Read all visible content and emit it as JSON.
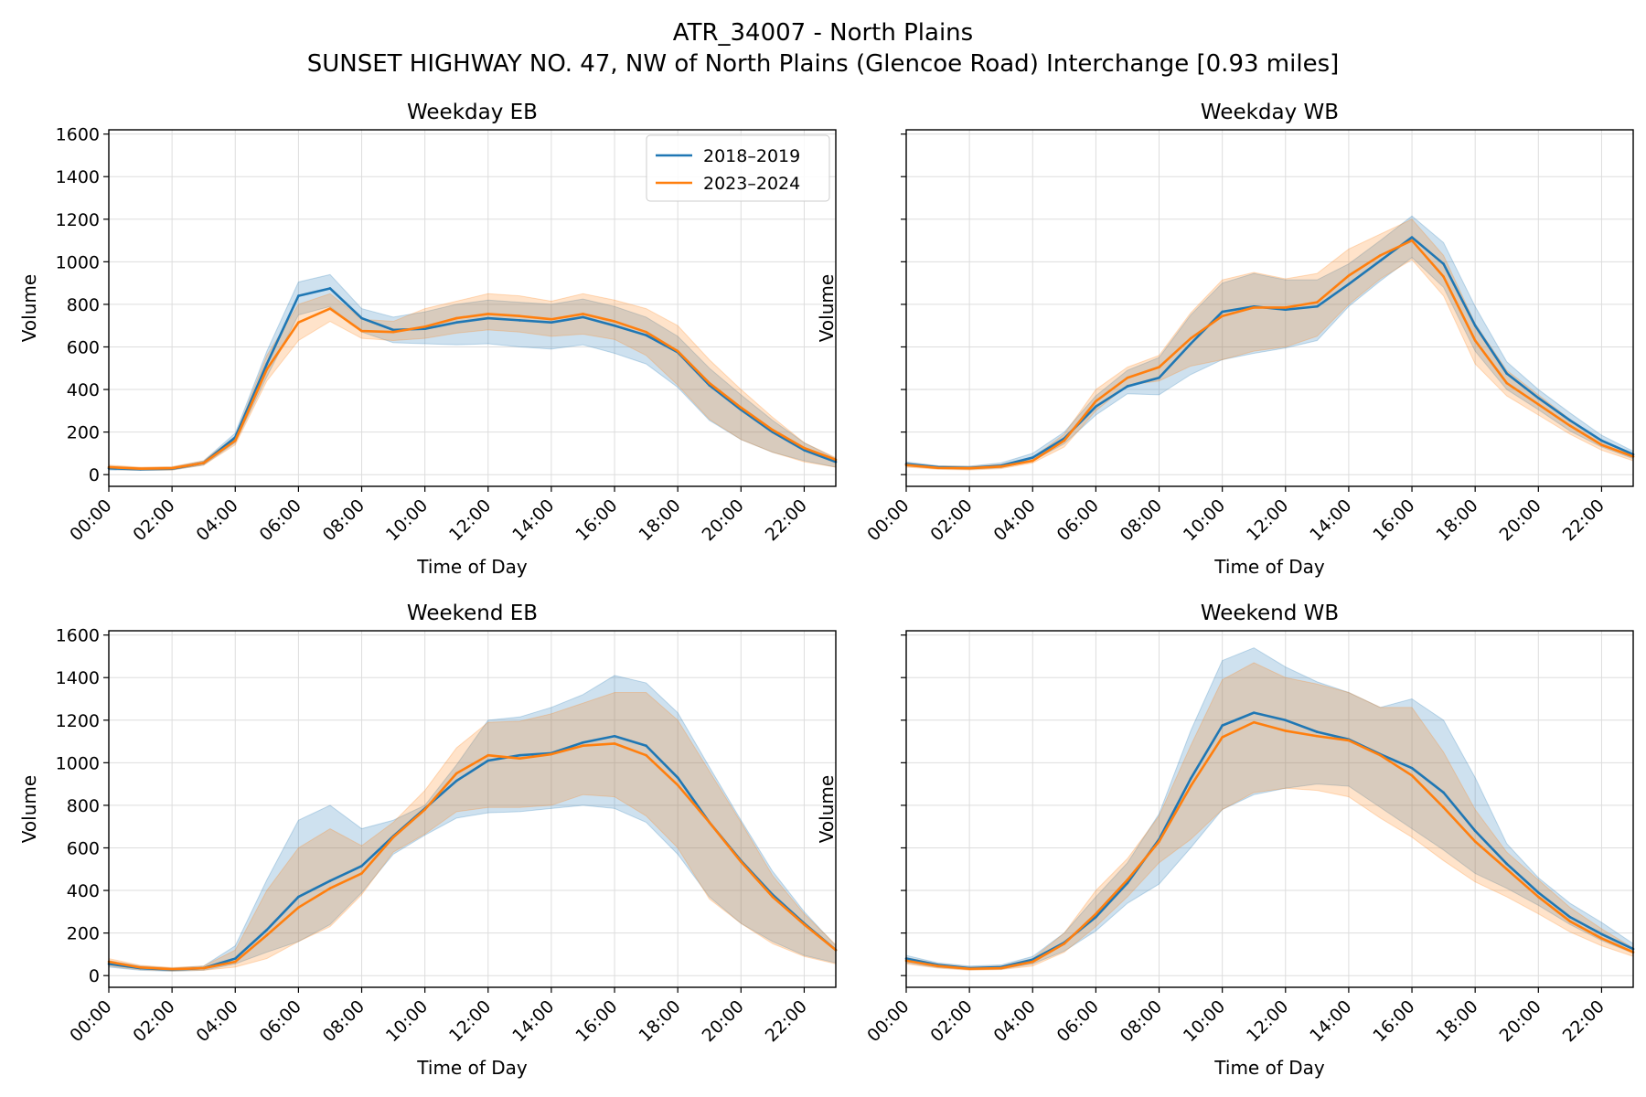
{
  "figure": {
    "title_line1": "ATR_34007 - North Plains",
    "title_line2": "SUNSET HIGHWAY NO. 47, NW of North Plains (Glencoe Road) Interchange [0.93 miles]"
  },
  "colors": {
    "series_2018_2019": "#1f77b4",
    "series_2023_2024": "#ff7f0e",
    "grid": "#dddddd"
  },
  "legend": {
    "placement": "upper-right of first panel",
    "items": [
      "2018–2019",
      "2023–2024"
    ]
  },
  "chart_data": [
    {
      "type": "line",
      "title": "Weekday EB",
      "xlabel": "Time of Day",
      "ylabel": "Volume",
      "x": [
        "00:00",
        "01:00",
        "02:00",
        "03:00",
        "04:00",
        "05:00",
        "06:00",
        "07:00",
        "08:00",
        "09:00",
        "10:00",
        "11:00",
        "12:00",
        "13:00",
        "14:00",
        "15:00",
        "16:00",
        "17:00",
        "18:00",
        "19:00",
        "20:00",
        "21:00",
        "22:00",
        "23:00"
      ],
      "xticks": [
        "00:00",
        "02:00",
        "04:00",
        "06:00",
        "08:00",
        "10:00",
        "12:00",
        "14:00",
        "16:00",
        "18:00",
        "20:00",
        "22:00"
      ],
      "yticks": [
        0,
        200,
        400,
        600,
        800,
        1000,
        1200,
        1400,
        1600
      ],
      "xlim": [
        0,
        23
      ],
      "ylim": [
        -55,
        1620
      ],
      "grid": true,
      "series": [
        {
          "name": "2018–2019",
          "values": [
            30,
            25,
            28,
            55,
            175,
            520,
            840,
            875,
            735,
            680,
            685,
            715,
            735,
            725,
            715,
            740,
            700,
            655,
            575,
            420,
            305,
            200,
            115,
            60
          ],
          "lower": [
            22,
            20,
            22,
            45,
            150,
            460,
            750,
            790,
            670,
            620,
            615,
            610,
            615,
            600,
            590,
            610,
            570,
            520,
            410,
            255,
            165,
            105,
            65,
            35
          ],
          "upper": [
            40,
            32,
            35,
            65,
            195,
            580,
            905,
            940,
            780,
            740,
            765,
            800,
            820,
            810,
            800,
            825,
            790,
            740,
            650,
            500,
            375,
            255,
            150,
            75
          ]
        },
        {
          "name": "2023–2024",
          "values": [
            35,
            28,
            30,
            55,
            160,
            495,
            715,
            780,
            675,
            670,
            695,
            735,
            755,
            745,
            730,
            755,
            720,
            670,
            580,
            430,
            315,
            210,
            125,
            70
          ],
          "lower": [
            25,
            20,
            22,
            45,
            140,
            440,
            630,
            720,
            640,
            630,
            640,
            665,
            680,
            670,
            650,
            660,
            635,
            560,
            420,
            260,
            165,
            105,
            60,
            35
          ],
          "upper": [
            45,
            35,
            38,
            65,
            180,
            560,
            800,
            850,
            730,
            720,
            780,
            815,
            850,
            840,
            815,
            850,
            820,
            780,
            700,
            540,
            400,
            270,
            150,
            80
          ]
        }
      ]
    },
    {
      "type": "line",
      "title": "Weekday WB",
      "xlabel": "Time of Day",
      "ylabel": "Volume",
      "x": [
        "00:00",
        "01:00",
        "02:00",
        "03:00",
        "04:00",
        "05:00",
        "06:00",
        "07:00",
        "08:00",
        "09:00",
        "10:00",
        "11:00",
        "12:00",
        "13:00",
        "14:00",
        "15:00",
        "16:00",
        "17:00",
        "18:00",
        "19:00",
        "20:00",
        "21:00",
        "22:00",
        "23:00"
      ],
      "xticks": [
        "00:00",
        "02:00",
        "04:00",
        "06:00",
        "08:00",
        "10:00",
        "12:00",
        "14:00",
        "16:00",
        "18:00",
        "20:00",
        "22:00"
      ],
      "yticks": [
        0,
        200,
        400,
        600,
        800,
        1000,
        1200,
        1400,
        1600
      ],
      "xlim": [
        0,
        23
      ],
      "ylim": [
        -55,
        1620
      ],
      "grid": true,
      "series": [
        {
          "name": "2018–2019",
          "values": [
            50,
            35,
            32,
            42,
            80,
            170,
            320,
            415,
            455,
            615,
            765,
            790,
            775,
            790,
            895,
            1005,
            1115,
            990,
            700,
            475,
            360,
            255,
            160,
            95
          ],
          "lower": [
            40,
            28,
            25,
            32,
            65,
            145,
            280,
            380,
            375,
            470,
            540,
            570,
            595,
            630,
            790,
            910,
            1020,
            880,
            580,
            400,
            305,
            205,
            130,
            75
          ],
          "upper": [
            60,
            42,
            40,
            55,
            100,
            200,
            370,
            490,
            550,
            750,
            900,
            945,
            915,
            915,
            990,
            1100,
            1215,
            1090,
            790,
            530,
            400,
            290,
            185,
            110
          ]
        },
        {
          "name": "2023–2024",
          "values": [
            45,
            32,
            30,
            38,
            65,
            160,
            345,
            455,
            505,
            640,
            745,
            785,
            785,
            810,
            935,
            1030,
            1100,
            930,
            630,
            430,
            330,
            230,
            140,
            85
          ],
          "lower": [
            35,
            25,
            22,
            28,
            55,
            130,
            300,
            420,
            440,
            510,
            540,
            580,
            600,
            650,
            800,
            920,
            1010,
            840,
            520,
            370,
            280,
            190,
            115,
            65
          ],
          "upper": [
            55,
            40,
            38,
            48,
            80,
            190,
            400,
            505,
            560,
            760,
            915,
            950,
            920,
            945,
            1060,
            1130,
            1200,
            1030,
            710,
            490,
            375,
            260,
            160,
            95
          ]
        }
      ]
    },
    {
      "type": "line",
      "title": "Weekend EB",
      "xlabel": "Time of Day",
      "ylabel": "Volume",
      "x": [
        "00:00",
        "01:00",
        "02:00",
        "03:00",
        "04:00",
        "05:00",
        "06:00",
        "07:00",
        "08:00",
        "09:00",
        "10:00",
        "11:00",
        "12:00",
        "13:00",
        "14:00",
        "15:00",
        "16:00",
        "17:00",
        "18:00",
        "19:00",
        "20:00",
        "21:00",
        "22:00",
        "23:00"
      ],
      "xticks": [
        "00:00",
        "02:00",
        "04:00",
        "06:00",
        "08:00",
        "10:00",
        "12:00",
        "14:00",
        "16:00",
        "18:00",
        "20:00",
        "22:00"
      ],
      "yticks": [
        0,
        200,
        400,
        600,
        800,
        1000,
        1200,
        1400,
        1600
      ],
      "xlim": [
        0,
        23
      ],
      "ylim": [
        -55,
        1620
      ],
      "grid": true,
      "series": [
        {
          "name": "2018–2019",
          "values": [
            55,
            35,
            28,
            35,
            80,
            215,
            370,
            445,
            515,
            655,
            785,
            915,
            1010,
            1035,
            1045,
            1095,
            1125,
            1080,
            930,
            720,
            540,
            380,
            245,
            120
          ],
          "lower": [
            40,
            25,
            20,
            25,
            55,
            110,
            160,
            240,
            390,
            570,
            660,
            740,
            765,
            770,
            785,
            800,
            785,
            720,
            570,
            370,
            245,
            160,
            95,
            60
          ],
          "upper": [
            70,
            45,
            35,
            45,
            140,
            450,
            730,
            800,
            690,
            730,
            800,
            990,
            1200,
            1215,
            1260,
            1320,
            1410,
            1375,
            1235,
            980,
            730,
            490,
            300,
            140
          ]
        },
        {
          "name": "2023–2024",
          "values": [
            65,
            38,
            30,
            35,
            65,
            190,
            320,
            410,
            480,
            650,
            780,
            950,
            1035,
            1020,
            1040,
            1080,
            1090,
            1035,
            895,
            720,
            535,
            370,
            240,
            120
          ],
          "lower": [
            45,
            28,
            22,
            25,
            40,
            80,
            160,
            230,
            380,
            580,
            665,
            770,
            790,
            790,
            800,
            850,
            840,
            750,
            600,
            360,
            245,
            150,
            90,
            55
          ],
          "upper": [
            80,
            48,
            38,
            45,
            120,
            400,
            600,
            690,
            610,
            720,
            870,
            1070,
            1190,
            1195,
            1230,
            1280,
            1330,
            1330,
            1200,
            960,
            720,
            470,
            290,
            145
          ]
        }
      ]
    },
    {
      "type": "line",
      "title": "Weekend WB",
      "xlabel": "Time of Day",
      "ylabel": "Volume",
      "x": [
        "00:00",
        "01:00",
        "02:00",
        "03:00",
        "04:00",
        "05:00",
        "06:00",
        "07:00",
        "08:00",
        "09:00",
        "10:00",
        "11:00",
        "12:00",
        "13:00",
        "14:00",
        "15:00",
        "16:00",
        "17:00",
        "18:00",
        "19:00",
        "20:00",
        "21:00",
        "22:00",
        "23:00"
      ],
      "xticks": [
        "00:00",
        "02:00",
        "04:00",
        "06:00",
        "08:00",
        "10:00",
        "12:00",
        "14:00",
        "16:00",
        "18:00",
        "20:00",
        "22:00"
      ],
      "yticks": [
        0,
        200,
        400,
        600,
        800,
        1000,
        1200,
        1400,
        1600
      ],
      "xlim": [
        0,
        23
      ],
      "ylim": [
        -55,
        1620
      ],
      "grid": true,
      "series": [
        {
          "name": "2018–2019",
          "values": [
            80,
            50,
            35,
            40,
            75,
            155,
            275,
            435,
            640,
            925,
            1175,
            1235,
            1200,
            1145,
            1110,
            1040,
            975,
            860,
            680,
            525,
            390,
            275,
            195,
            125
          ],
          "lower": [
            60,
            38,
            28,
            30,
            55,
            115,
            210,
            340,
            430,
            600,
            780,
            850,
            880,
            900,
            890,
            790,
            690,
            590,
            480,
            410,
            330,
            240,
            165,
            105
          ],
          "upper": [
            95,
            60,
            45,
            50,
            90,
            200,
            370,
            530,
            760,
            1150,
            1480,
            1540,
            1450,
            1380,
            1330,
            1260,
            1300,
            1200,
            930,
            620,
            460,
            340,
            250,
            150
          ]
        },
        {
          "name": "2023–2024",
          "values": [
            70,
            45,
            32,
            35,
            65,
            150,
            290,
            450,
            630,
            890,
            1120,
            1190,
            1150,
            1125,
            1105,
            1035,
            940,
            790,
            630,
            500,
            370,
            255,
            175,
            110
          ],
          "lower": [
            55,
            35,
            25,
            28,
            45,
            110,
            230,
            370,
            530,
            640,
            780,
            860,
            880,
            870,
            840,
            740,
            650,
            540,
            440,
            370,
            290,
            205,
            140,
            90
          ],
          "upper": [
            85,
            55,
            40,
            45,
            80,
            200,
            400,
            550,
            750,
            1080,
            1390,
            1470,
            1400,
            1370,
            1330,
            1260,
            1260,
            1050,
            780,
            580,
            450,
            320,
            220,
            130
          ]
        }
      ]
    }
  ]
}
